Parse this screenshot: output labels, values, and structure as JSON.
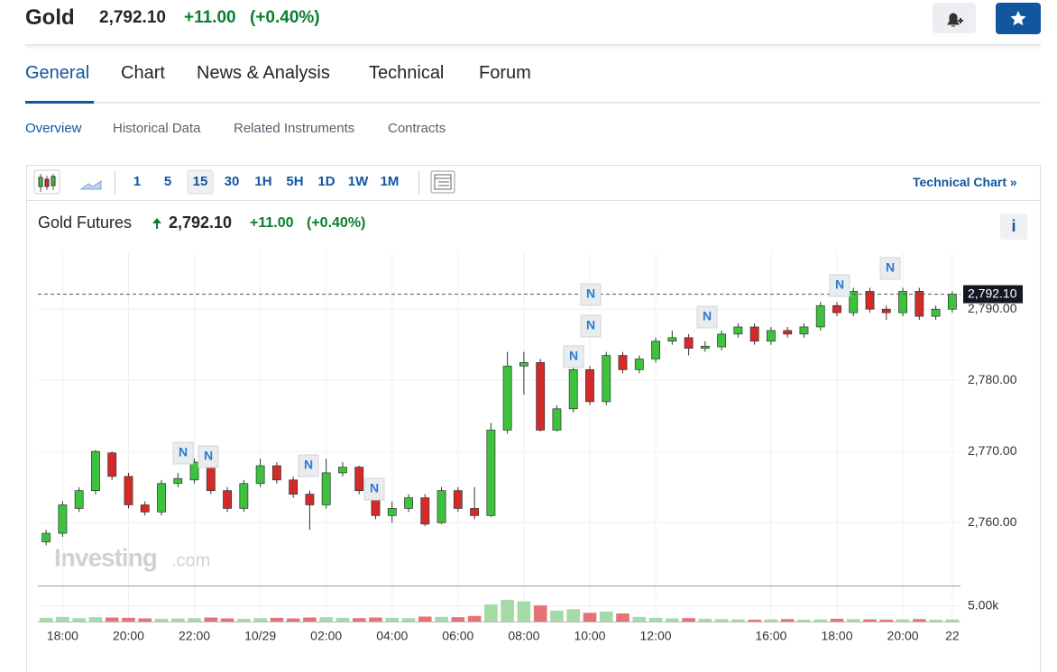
{
  "header": {
    "title": "Gold",
    "price": "2,792.10",
    "change": "+11.00",
    "change_pct": "(+0.40%)"
  },
  "tabs": [
    "General",
    "Chart",
    "News & Analysis",
    "Technical",
    "Forum"
  ],
  "subtabs": [
    "Overview",
    "Historical Data",
    "Related Instruments",
    "Contracts"
  ],
  "toolbar": {
    "intervals": [
      "1",
      "5",
      "15",
      "30",
      "1H",
      "5H",
      "1D",
      "1W",
      "1M"
    ],
    "link": "Technical Chart",
    "link_icon": "»"
  },
  "chart_data": {
    "type": "candlestick",
    "title": "Gold Futures",
    "price": "2,792.10",
    "change": "+11.00",
    "change_pct": "(+0.40%)",
    "info": "i",
    "watermark": [
      "Investing",
      ".com"
    ],
    "categories": [
      null,
      "18:00",
      null,
      null,
      null,
      "20:00",
      null,
      null,
      null,
      "22:00",
      null,
      null,
      null,
      "10/29",
      null,
      null,
      null,
      "02:00",
      null,
      null,
      null,
      "04:00",
      null,
      null,
      null,
      "06:00",
      null,
      null,
      null,
      "08:00",
      null,
      null,
      null,
      "10:00",
      null,
      null,
      null,
      "12:00",
      null,
      null,
      null,
      null,
      null,
      null,
      "16:00",
      null,
      null,
      null,
      "18:00",
      null,
      null,
      null,
      "20:00",
      null,
      null,
      "22"
    ],
    "open": [
      2757.3,
      2758.5,
      2762,
      2764.5,
      2769.8,
      2766.5,
      2762.5,
      2761.5,
      2765.5,
      2766,
      2768.5,
      2764.5,
      2762,
      2765.5,
      2768,
      2766,
      2764,
      2762.5,
      2767,
      2767.8,
      2764.5,
      2761,
      2762,
      2763.5,
      2760,
      2764.5,
      2762,
      2761,
      2773,
      2782,
      2782.5,
      2773,
      2776,
      2781.5,
      2777,
      2783.5,
      2781.5,
      2783,
      2785.5,
      2786,
      2784.5,
      2784.7,
      2786.5,
      2787.5,
      2785.5,
      2787,
      2786.5,
      2787.5,
      2790.5,
      2789.5,
      2792.5,
      2790,
      2789.5,
      2792.5,
      2789,
      2790
    ],
    "high": [
      2759,
      2763,
      2765,
      2770.2,
      2770,
      2767,
      2763,
      2766,
      2767,
      2769,
      2769,
      2765,
      2766,
      2769,
      2768.5,
      2766.5,
      2764.5,
      2769,
      2768.5,
      2768,
      2765,
      2763,
      2764,
      2764,
      2765,
      2765,
      2765,
      2774,
      2784,
      2784,
      2783,
      2776.5,
      2782,
      2782,
      2784,
      2784,
      2783.5,
      2786,
      2787,
      2786.5,
      2785.5,
      2787,
      2788,
      2788,
      2787.5,
      2787.5,
      2788,
      2791,
      2791,
      2793,
      2793,
      2790.5,
      2793,
      2793,
      2790.5,
      2792.5
    ],
    "low": [
      2756.8,
      2758,
      2761.5,
      2764,
      2766,
      2762,
      2761,
      2761,
      2765,
      2765.5,
      2764,
      2761.5,
      2761.5,
      2765,
      2765.5,
      2763.5,
      2759,
      2762,
      2766.5,
      2764,
      2760.5,
      2760,
      2761.5,
      2759.5,
      2759.8,
      2761.5,
      2760.5,
      2760.8,
      2772.5,
      2778,
      2772.8,
      2772.8,
      2775.5,
      2776.5,
      2776.5,
      2781,
      2781,
      2782.5,
      2785,
      2783.5,
      2784,
      2784.2,
      2786,
      2785,
      2785,
      2786,
      2786,
      2787,
      2789,
      2789,
      2789.5,
      2788.5,
      2789,
      2788.5,
      2788.5,
      2789.5
    ],
    "close": [
      2758.5,
      2762.5,
      2764.5,
      2770,
      2766.5,
      2762.5,
      2761.5,
      2765.5,
      2766.2,
      2768.5,
      2764.5,
      2762,
      2765.5,
      2768,
      2766,
      2764,
      2762.5,
      2767,
      2767.8,
      2764.5,
      2761,
      2762,
      2763.5,
      2759.8,
      2764.5,
      2762,
      2761,
      2773,
      2782,
      2782.5,
      2773,
      2776,
      2781.5,
      2777,
      2783.5,
      2781.5,
      2783,
      2785.5,
      2786,
      2784.5,
      2784.8,
      2786.5,
      2787.5,
      2785.5,
      2787,
      2786.5,
      2787.5,
      2790.5,
      2789.5,
      2792.5,
      2790,
      2789.5,
      2792.5,
      2789,
      2790,
      2792.1
    ],
    "volume": [
      1200,
      1500,
      1100,
      1400,
      1300,
      1200,
      1000,
      900,
      1000,
      1100,
      1300,
      1000,
      900,
      1100,
      1200,
      1000,
      1300,
      1400,
      1200,
      1100,
      1300,
      1200,
      1100,
      1600,
      1500,
      1400,
      1800,
      5500,
      7000,
      6500,
      5200,
      3500,
      4000,
      2800,
      3200,
      2600,
      1500,
      1200,
      1000,
      1100,
      900,
      800,
      700,
      600,
      700,
      800,
      600,
      700,
      900,
      800,
      700,
      600,
      700,
      800,
      600,
      700
    ],
    "up_color": "#3cc23c",
    "down_color": "#d42a2a",
    "up_volume_color": "#a5dba6",
    "down_volume_color": "#e57373",
    "ylim": [
      2751.8,
      2798
    ],
    "yticks": [
      {
        "value": 2760,
        "label": "2,760.00"
      },
      {
        "value": 2770,
        "label": "2,770.00"
      },
      {
        "value": 2780,
        "label": "2,780.00"
      },
      {
        "value": 2790,
        "label": "2,790.00"
      }
    ],
    "volume_ylim": [
      0,
      11000
    ],
    "volume_ticks": [
      {
        "value": 5000,
        "label": "5.00k"
      }
    ],
    "last": {
      "value": 2792.1,
      "label": "2,792.10"
    },
    "news": [
      "N",
      "N",
      "N",
      "N",
      "N",
      "N",
      "N",
      "N",
      "N",
      "N"
    ],
    "grid": true
  }
}
